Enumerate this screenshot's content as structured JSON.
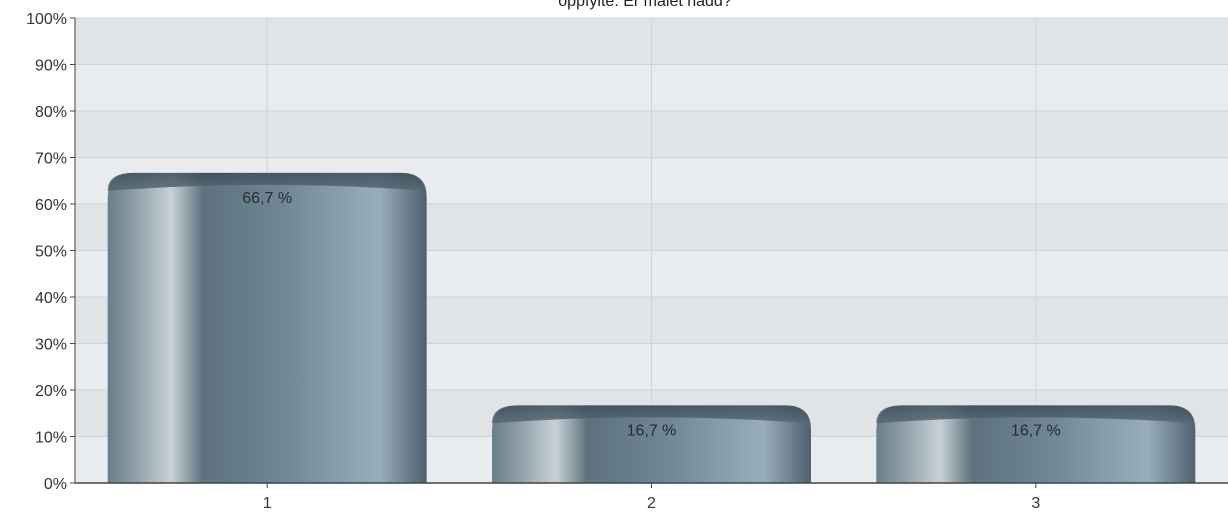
{
  "chart_data": {
    "type": "bar",
    "title": "oppfylte. Er målet nådd?",
    "xlabel": "",
    "ylabel": "",
    "categories": [
      "1",
      "2",
      "3"
    ],
    "values": [
      66.7,
      16.7,
      16.7
    ],
    "value_labels": [
      "66,7 %",
      "16,7 %",
      "16,7 %"
    ],
    "ylim": [
      0,
      100
    ],
    "y_ticks": [
      "0%",
      "10%",
      "20%",
      "30%",
      "40%",
      "50%",
      "60%",
      "70%",
      "80%",
      "90%",
      "100%"
    ],
    "grid": true,
    "legend": "none",
    "colors": {
      "bar_dark": "#4c5f6c",
      "bar_mid": "#6e8594",
      "bar_light": "#98adb9",
      "highlight": "#c6d0d6",
      "plot_bg_light": "#e9ecef",
      "plot_bg_dark": "#e1e4e7",
      "grid": "#cfd3d7",
      "axis": "#444444"
    }
  }
}
